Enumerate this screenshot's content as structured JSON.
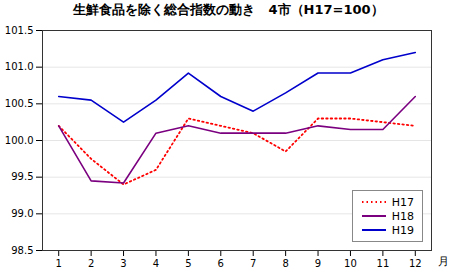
{
  "chart_data": {
    "type": "line",
    "title": "生鮮食品を除く総合指数の動き　4市（H17=100）",
    "xlabel": "月",
    "x": [
      1,
      2,
      3,
      4,
      5,
      6,
      7,
      8,
      9,
      10,
      11,
      12
    ],
    "series": [
      {
        "name": "H17",
        "color": "#ff0000",
        "line_style": "dotted",
        "values": [
          100.2,
          99.75,
          99.4,
          99.6,
          100.3,
          100.2,
          100.1,
          99.85,
          100.3,
          100.3,
          100.25,
          100.2
        ]
      },
      {
        "name": "H18",
        "color": "#7b0080",
        "line_style": "solid",
        "values": [
          100.2,
          99.45,
          99.42,
          100.1,
          100.2,
          100.1,
          100.1,
          100.1,
          100.2,
          100.15,
          100.15,
          100.6
        ]
      },
      {
        "name": "H19",
        "color": "#0000cc",
        "line_style": "solid",
        "values": [
          100.6,
          100.55,
          100.25,
          100.55,
          100.92,
          100.6,
          100.4,
          100.65,
          100.92,
          100.92,
          101.1,
          101.2
        ]
      }
    ],
    "xlim": [
      0.5,
      12.5
    ],
    "xticks": [
      1,
      2,
      3,
      4,
      5,
      6,
      7,
      8,
      9,
      10,
      11,
      12
    ],
    "ylim": [
      98.5,
      101.5
    ],
    "yticks": [
      98.5,
      {
        "value": 99,
        "label": "99.0"
      },
      99.5,
      {
        "value": 100,
        "label": "100.0"
      },
      100.5,
      {
        "value": 101,
        "label": "101.0"
      },
      101.5
    ],
    "grid": true,
    "legend": "lower right"
  }
}
